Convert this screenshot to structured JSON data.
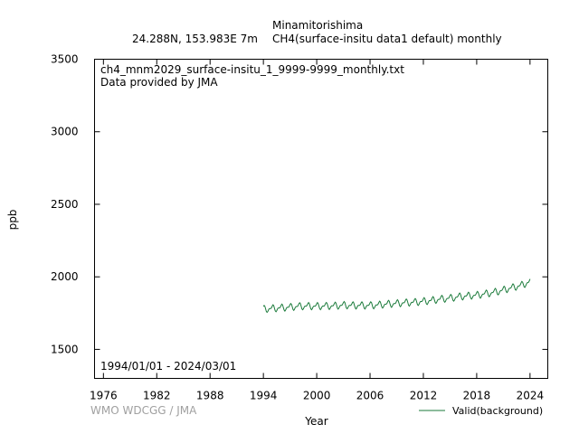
{
  "header": {
    "station": "Minamitorishima",
    "location": "24.288N, 153.983E 7m",
    "dataset": "CH4(surface-insitu data1 default) monthly"
  },
  "plot": {
    "filename": "ch4_mnm2029_surface-insitu_1_9999-9999_monthly.txt",
    "provider": "Data provided by JMA",
    "period": "1994/01/01 - 2024/03/01",
    "watermark": "WMO WDCGG / JMA"
  },
  "colors": {
    "series": "#1a7a3a",
    "watermark": "#a0a0a0"
  },
  "chart_data": {
    "type": "line",
    "title": "",
    "xlabel": "Year",
    "ylabel": "ppb",
    "xlim": [
      1975,
      2026
    ],
    "ylim": [
      1300,
      3500
    ],
    "xticks": [
      "1976",
      "1982",
      "1988",
      "1994",
      "2000",
      "2006",
      "2012",
      "2018",
      "2024"
    ],
    "yticks": [
      "1500",
      "2000",
      "2500",
      "3000",
      "3500"
    ],
    "legend": "bottom-right",
    "grid": false,
    "series": [
      {
        "name": "Valid(background)",
        "x": [
          1994.0,
          1995.0,
          1996.0,
          1997.0,
          1998.0,
          1999.0,
          2000.0,
          2001.0,
          2002.0,
          2003.0,
          2004.0,
          2005.0,
          2006.0,
          2007.0,
          2008.0,
          2009.0,
          2010.0,
          2011.0,
          2012.0,
          2013.0,
          2014.0,
          2015.0,
          2016.0,
          2017.0,
          2018.0,
          2019.0,
          2020.0,
          2021.0,
          2022.0,
          2023.0,
          2024.0
        ],
        "values": [
          1781,
          1785,
          1790,
          1794,
          1800,
          1801,
          1801,
          1802,
          1803,
          1808,
          1806,
          1806,
          1806,
          1810,
          1816,
          1820,
          1825,
          1828,
          1834,
          1841,
          1850,
          1856,
          1866,
          1872,
          1877,
          1886,
          1897,
          1912,
          1929,
          1944,
          1970
        ],
        "seasonal_amplitude": 30
      }
    ]
  }
}
